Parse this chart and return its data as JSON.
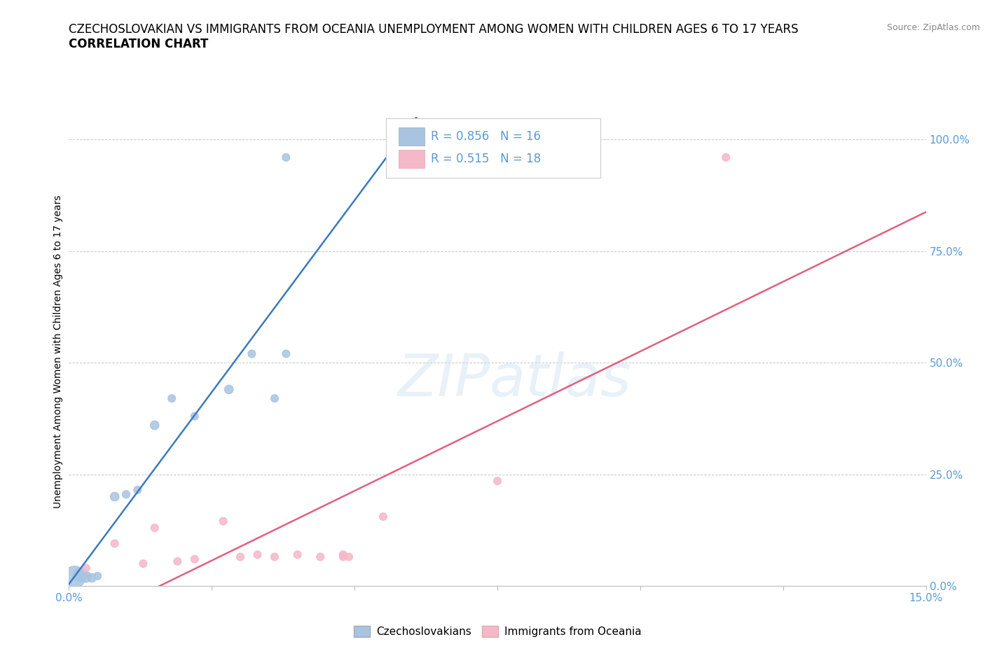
{
  "title_line1": "CZECHOSLOVAKIAN VS IMMIGRANTS FROM OCEANIA UNEMPLOYMENT AMONG WOMEN WITH CHILDREN AGES 6 TO 17 YEARS",
  "title_line2": "CORRELATION CHART",
  "source": "Source: ZipAtlas.com",
  "ylabel": "Unemployment Among Women with Children Ages 6 to 17 years",
  "xlim": [
    0.0,
    0.15
  ],
  "ylim": [
    0.0,
    1.05
  ],
  "xticks": [
    0.0,
    0.025,
    0.05,
    0.075,
    0.1,
    0.125,
    0.15
  ],
  "xticklabels": [
    "0.0%",
    "",
    "",
    "",
    "",
    "",
    "15.0%"
  ],
  "yticks_right": [
    0.0,
    0.25,
    0.5,
    0.75,
    1.0
  ],
  "ytick_right_labels": [
    "0.0%",
    "25.0%",
    "50.0%",
    "75.0%",
    "100.0%"
  ],
  "watermark": "ZIPatlas",
  "background_color": "#ffffff",
  "grid_color": "#c8c8c8",
  "czecho_x": [
    0.001,
    0.002,
    0.003,
    0.004,
    0.005,
    0.008,
    0.01,
    0.012,
    0.015,
    0.018,
    0.022,
    0.028,
    0.032,
    0.036,
    0.038,
    0.038
  ],
  "czecho_y": [
    0.02,
    0.025,
    0.02,
    0.018,
    0.022,
    0.2,
    0.205,
    0.215,
    0.36,
    0.42,
    0.38,
    0.44,
    0.52,
    0.42,
    0.52,
    0.96
  ],
  "czecho_sizes": [
    500,
    200,
    120,
    80,
    60,
    80,
    60,
    60,
    80,
    60,
    60,
    80,
    60,
    60,
    60,
    60
  ],
  "oceania_x": [
    0.003,
    0.008,
    0.013,
    0.015,
    0.019,
    0.022,
    0.027,
    0.03,
    0.033,
    0.036,
    0.04,
    0.044,
    0.048,
    0.048,
    0.049,
    0.055,
    0.075,
    0.115
  ],
  "oceania_y": [
    0.04,
    0.095,
    0.05,
    0.13,
    0.055,
    0.06,
    0.145,
    0.065,
    0.07,
    0.065,
    0.07,
    0.065,
    0.065,
    0.07,
    0.065,
    0.155,
    0.235,
    0.96
  ],
  "oceania_sizes": [
    60,
    60,
    60,
    60,
    60,
    60,
    60,
    60,
    60,
    60,
    60,
    60,
    60,
    60,
    60,
    60,
    60,
    60
  ],
  "czecho_color": "#a8c4e0",
  "oceania_color": "#f4b8c8",
  "czecho_line_color": "#3a7abf",
  "oceania_line_color": "#e06080",
  "czecho_R": 0.856,
  "czecho_N": 16,
  "oceania_R": 0.515,
  "oceania_N": 18,
  "legend_czecho": "Czechoslovakians",
  "legend_oceania": "Immigrants from Oceania",
  "title_fontsize": 12,
  "axis_label_fontsize": 10,
  "tick_fontsize": 11,
  "source_fontsize": 9
}
